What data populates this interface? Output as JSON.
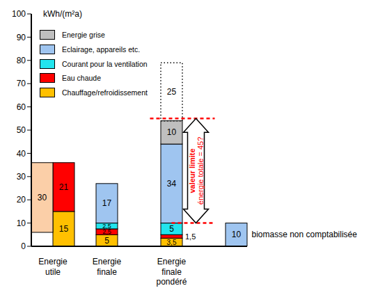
{
  "chart_data": {
    "type": "bar",
    "stacked": true,
    "data_labels": true,
    "grid": false,
    "legend": "upper left",
    "y_label": "kWh/(m²a)",
    "categories": [
      "Energie utile",
      null,
      null,
      "Energie finale",
      null,
      null,
      "Energie finale pondéré",
      null,
      null,
      null
    ],
    "ylim": [
      0,
      100
    ],
    "yticks": [
      0,
      10,
      20,
      30,
      40,
      50,
      60,
      70,
      80,
      90,
      100
    ],
    "series": [
      {
        "name": "Chauffage/refroidissement",
        "color": "#ffc000",
        "values": [
          null,
          15,
          null,
          5,
          null,
          null,
          3.5,
          null,
          null,
          null
        ],
        "value_labels": [
          null,
          "15",
          null,
          "5",
          null,
          null,
          "3,5",
          null,
          null,
          null
        ]
      },
      {
        "name": "Eau chaude",
        "color": "#ff0000",
        "values": [
          null,
          21,
          null,
          2.5,
          null,
          null,
          1.5,
          null,
          null,
          null
        ],
        "value_labels": [
          null,
          "21",
          null,
          "2,5",
          null,
          null,
          "1,5",
          null,
          null,
          null
        ]
      },
      {
        "name": "Courant pour la ventilation",
        "color": "#22e5ee",
        "values": [
          null,
          null,
          null,
          2.5,
          null,
          null,
          5,
          null,
          null,
          null
        ],
        "value_labels": [
          null,
          null,
          null,
          "2,5",
          null,
          null,
          "5",
          null,
          null,
          null
        ]
      },
      {
        "name": "Eclairage, appareils etc.",
        "color": "#9fc5f0",
        "values": [
          null,
          null,
          null,
          17,
          null,
          null,
          34,
          null,
          null,
          10
        ]
      },
      {
        "name": "Energie grise",
        "color": "#bfbfbf",
        "values": [
          null,
          null,
          null,
          null,
          null,
          null,
          10,
          null,
          null,
          null
        ]
      },
      {
        "values": [
          null,
          null,
          null,
          null,
          null,
          null,
          25,
          null,
          null,
          null
        ],
        "line_style": "dotted"
      },
      {
        "color": "#fbcfa8",
        "values": [
          30,
          null,
          null,
          null,
          null,
          null,
          null,
          null,
          null,
          null
        ],
        "base": [
          6,
          null,
          null,
          null,
          null,
          null,
          null,
          null,
          null,
          null
        ]
      }
    ],
    "annotations": [
      {
        "type": "hline",
        "y": 55,
        "from": 5,
        "to": 8,
        "color": "#ff0000",
        "line_style": "dashed"
      },
      {
        "type": "hline",
        "y": 10,
        "from": 6,
        "to": 8,
        "color": "#ff0000",
        "line_style": "dashed"
      },
      {
        "type": "arrow",
        "x": 7,
        "between": [
          10,
          55
        ],
        "texts": [
          "valeur limite",
          "énergie totale = 45?"
        ],
        "color": "#ff0000"
      },
      {
        "type": "text",
        "x": 9,
        "text": "biomasse non comptabilisée"
      }
    ]
  }
}
